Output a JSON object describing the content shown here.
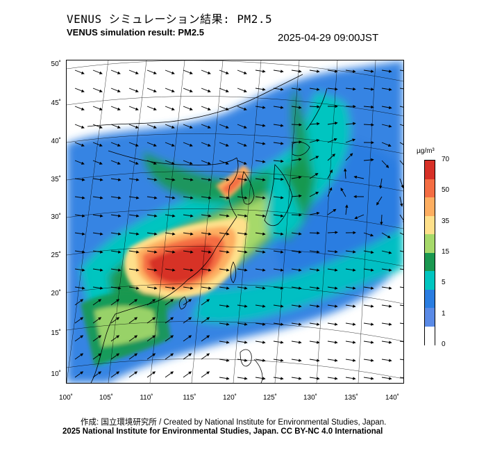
{
  "header": {
    "title_jp": "VENUS シミュレーション結果: PM2.5",
    "title_en": "VENUS simulation result: PM2.5",
    "timestamp": "2025-04-29 09:00JST"
  },
  "map": {
    "lat_labels": [
      "50˚",
      "45˚",
      "40˚",
      "35˚",
      "30˚",
      "25˚",
      "20˚",
      "15˚",
      "10˚"
    ],
    "lon_labels": [
      "100˚",
      "105˚",
      "110˚",
      "115˚",
      "120˚",
      "125˚",
      "130˚",
      "135˚",
      "140˚"
    ]
  },
  "colorbar": {
    "unit": "µg/m³",
    "labels": [
      "70",
      "50",
      "35",
      "15",
      "5",
      "1",
      "0"
    ],
    "colors": [
      "#d73027",
      "#f46d43",
      "#fdae61",
      "#fee08b",
      "#a6d96a",
      "#1a9850",
      "#00c5c0",
      "#2a7de1",
      "#5a8ae6",
      "#ffffff"
    ]
  },
  "footer": {
    "credit": "作成: 国立環境研究所 / Created by National Institute for Environmental Studies, Japan.",
    "copyright": "2025 National Institute for Environmental Studies, Japan. CC BY-NC 4.0 International"
  }
}
